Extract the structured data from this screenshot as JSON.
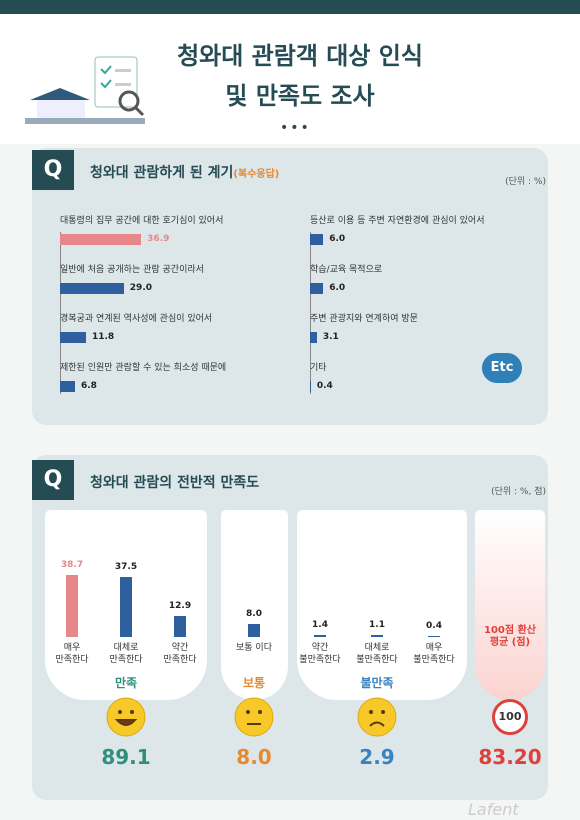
{
  "header": {
    "title_lines": [
      "청와대 관람객 대상 인식",
      "및 만족도 조사"
    ]
  },
  "chart_data": [
    {
      "type": "hbar",
      "q": "Q",
      "title": "청와대 관람하게 된 계기",
      "subtitle": "(복수응답)",
      "unit": "(단위 : %)",
      "categories": [
        "대통령의 집무 공간에 대한 호기심이 있어서",
        "일반에 처음 공개하는 관람 공간이라서",
        "경복궁과 연계된 역사성에 관심이 있어서",
        "제한된 인원만 관람할 수 있는 희소성 때문에",
        "등산로 이용 등 주변 자연환경에 관심이 있어서",
        "학습/교육 목적으로",
        "주변 관광지와 연계하여 방문",
        "기타"
      ],
      "values": [
        36.9,
        29.0,
        11.8,
        6.8,
        6.0,
        6.0,
        3.1,
        0.4
      ],
      "value_labels": [
        "36.9",
        "29.0",
        "11.8",
        "6.8",
        "6.0",
        "6.0",
        "3.1",
        "0.4"
      ],
      "colors": [
        "#e8878a",
        "#2f5f9e",
        "#2f5f9e",
        "#2f5f9e",
        "#2f5f9e",
        "#2f5f9e",
        "#2f5f9e",
        "#2f5f9e"
      ],
      "icon_text": "Etc"
    },
    {
      "type": "vbar",
      "q": "Q",
      "title": "청와대 관람의 전반적 만족도",
      "unit": "(단위 : %, 점)",
      "categories": [
        "매우 만족한다",
        "대체로 만족한다",
        "약간 만족한다",
        "보통 이다",
        "약간 불만족한다",
        "대체로 불만족한다",
        "매우 불만족한다"
      ],
      "values": [
        38.7,
        37.5,
        12.9,
        8.0,
        1.4,
        1.1,
        0.4
      ],
      "value_labels": [
        "38.7",
        "37.5",
        "12.9",
        "8.0",
        "1.4",
        "1.1",
        "0.4"
      ],
      "colors": [
        "#e8878a",
        "#2f5f9e",
        "#2f5f9e",
        "#2f5f9e",
        "#2f5f9e",
        "#2f5f9e",
        "#2f5f9e"
      ],
      "groups": [
        {
          "name": "만족",
          "total": 89.1,
          "total_label": "89.1",
          "color": "#2f8f7c"
        },
        {
          "name": "보통",
          "total": 8.0,
          "total_label": "8.0",
          "color": "#e8892f"
        },
        {
          "name": "불만족",
          "total": 2.9,
          "total_label": "2.9",
          "color": "#3a82bf"
        }
      ],
      "average": {
        "label": "100점 환산 평균 (점)",
        "max": 100,
        "value": 83.2,
        "value_label": "83.20",
        "color": "#e0403c"
      }
    }
  ],
  "footer": {
    "watermark": "Lafent"
  }
}
